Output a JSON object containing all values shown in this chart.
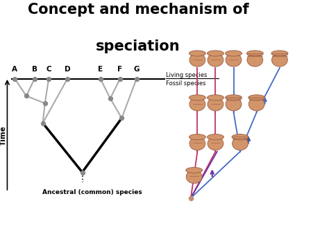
{
  "title_line1": "Concept and mechanism of",
  "title_line2": "speciation",
  "title_fontsize": 15,
  "title_fontweight": "bold",
  "bg_color": "#ffffff",
  "tree_labels": [
    "A",
    "B",
    "C",
    "D",
    "E",
    "F",
    "G"
  ],
  "living_species_text": "Living species",
  "fossil_species_text": "Fossil species",
  "time_label": "Time",
  "ancestral_label": "Ancestral (common) species",
  "brown": "#D2956A",
  "dark_brown": "#A0634A",
  "line_red": "#C0306A",
  "line_blue": "#4469C4",
  "line_purple": "#7030A0",
  "gray": "#888888",
  "lgray": "#aaaaaa"
}
